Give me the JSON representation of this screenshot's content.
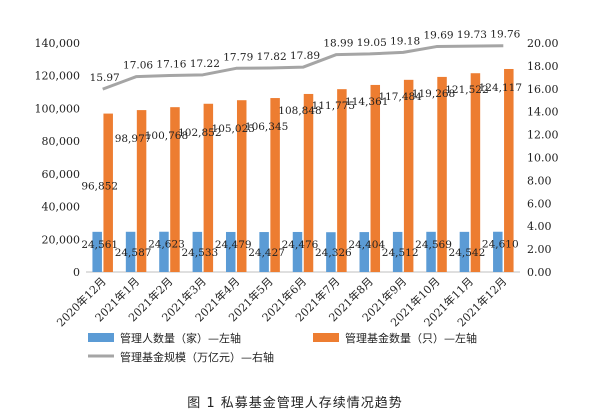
{
  "chart_data": {
    "type": "bar",
    "title": "",
    "categories": [
      "2020年12月",
      "2021年1月",
      "2021年2月",
      "2021年3月",
      "2021年4月",
      "2021年5月",
      "2021年6月",
      "2021年7月",
      "2021年8月",
      "2021年9月",
      "2021年10月",
      "2021年11月",
      "2021年12月"
    ],
    "series": [
      {
        "name": "管理人数量（家）—左轴",
        "kind": "bar",
        "axis": "left",
        "color": "#5b9bd5",
        "values": [
          24561,
          24587,
          24623,
          24533,
          24479,
          24427,
          24476,
          24326,
          24404,
          24512,
          24569,
          24542,
          24610
        ],
        "labels": [
          "24,561",
          "24,587",
          "24,623",
          "24,533",
          "24,479",
          "24,427",
          "24,476",
          "24,326",
          "24,404",
          "24,512",
          "24,569",
          "24,542",
          "24,610"
        ]
      },
      {
        "name": "管理基金数量（只）—左轴",
        "kind": "bar",
        "axis": "left",
        "color": "#ed7d31",
        "values": [
          96852,
          98977,
          100768,
          102852,
          105025,
          106345,
          108848,
          111775,
          114361,
          117484,
          119268,
          121522,
          124117
        ],
        "labels": [
          "96,852",
          "98,977",
          "100,768",
          "102,852",
          "105,025",
          "106,345",
          "108,848",
          "111,775",
          "114,361",
          "117,484",
          "119,268",
          "121,522",
          "124,117"
        ]
      },
      {
        "name": "管理基金规模（万亿元）—右轴",
        "kind": "line",
        "axis": "right",
        "color": "#a5a5a5",
        "values": [
          15.97,
          17.06,
          17.16,
          17.22,
          17.79,
          17.82,
          17.89,
          18.99,
          19.05,
          19.18,
          19.69,
          19.73,
          19.76
        ],
        "labels": [
          "15.97",
          "17.06",
          "17.16",
          "17.22",
          "17.79",
          "17.82",
          "17.89",
          "18.99",
          "19.05",
          "19.18",
          "19.69",
          "19.73",
          "19.76"
        ]
      }
    ],
    "y_left": {
      "range": [
        0,
        140000
      ],
      "ticks": [
        "0",
        "20,000",
        "40,000",
        "60,000",
        "80,000",
        "100,000",
        "120,000",
        "140,000"
      ],
      "tick_values": [
        0,
        20000,
        40000,
        60000,
        80000,
        100000,
        120000,
        140000
      ]
    },
    "y_right": {
      "range": [
        0,
        20
      ],
      "ticks": [
        "0.00",
        "2.00",
        "4.00",
        "6.00",
        "8.00",
        "10.00",
        "12.00",
        "14.00",
        "16.00",
        "18.00",
        "20.00"
      ],
      "tick_values": [
        0,
        2,
        4,
        6,
        8,
        10,
        12,
        14,
        16,
        18,
        20
      ]
    },
    "grid": false,
    "legend_position": "bottom"
  },
  "caption": "图 1  私募基金管理人存续情况趋势"
}
